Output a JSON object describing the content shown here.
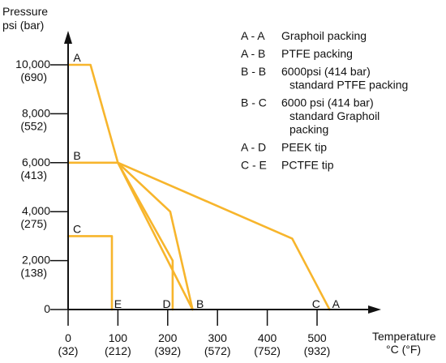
{
  "chart_data": {
    "type": "line",
    "title": "",
    "ylabel_lines": [
      "Pressure",
      "psi (bar)"
    ],
    "xlabel_lines": [
      "Temperature",
      "°C (°F)"
    ],
    "xlim": [
      0,
      540
    ],
    "ylim": [
      0,
      10500
    ],
    "y_ticks": [
      {
        "value": 10000,
        "label": "10,000",
        "sub": "(690)"
      },
      {
        "value": 8000,
        "label": "8,000",
        "sub": "(552)"
      },
      {
        "value": 6000,
        "label": "6,000",
        "sub": "(413)"
      },
      {
        "value": 4000,
        "label": "4,000",
        "sub": "(275)"
      },
      {
        "value": 2000,
        "label": "2,000",
        "sub": "(138)"
      },
      {
        "value": 0,
        "label": "0",
        "sub": ""
      }
    ],
    "x_ticks": [
      {
        "value": 0,
        "label": "0",
        "sub": "(32)"
      },
      {
        "value": 100,
        "label": "100",
        "sub": "(212)"
      },
      {
        "value": 200,
        "label": "200",
        "sub": "(392)"
      },
      {
        "value": 300,
        "label": "300",
        "sub": "(572)"
      },
      {
        "value": 400,
        "label": "400",
        "sub": "(752)"
      },
      {
        "value": 500,
        "label": "500",
        "sub": "(932)"
      }
    ],
    "line_color": "#f7b52c",
    "series": [
      {
        "points": [
          [
            0,
            10000
          ],
          [
            45,
            10000
          ],
          [
            100,
            6000
          ],
          [
            250,
            0
          ]
        ]
      },
      {
        "points": [
          [
            0,
            6000
          ],
          [
            100,
            6000
          ],
          [
            205,
            4000
          ],
          [
            250,
            0
          ]
        ]
      },
      {
        "points": [
          [
            100,
            6000
          ],
          [
            450,
            2900
          ],
          [
            525,
            0
          ]
        ]
      },
      {
        "points": [
          [
            100,
            6000
          ],
          [
            210,
            2000
          ],
          [
            210,
            0
          ]
        ]
      },
      {
        "points": [
          [
            0,
            3000
          ],
          [
            88,
            3000
          ],
          [
            88,
            0
          ]
        ]
      }
    ],
    "point_labels": [
      {
        "text": "A",
        "x": 18,
        "y": 10000
      },
      {
        "text": "B",
        "x": 18,
        "y": 6000
      },
      {
        "text": "C",
        "x": 18,
        "y": 3000
      },
      {
        "text": "E",
        "x": 100,
        "y": 0
      },
      {
        "text": "D",
        "x": 198,
        "y": 0
      },
      {
        "text": "B",
        "x": 265,
        "y": 0
      },
      {
        "text": "C",
        "x": 498,
        "y": 0
      },
      {
        "text": "A",
        "x": 538,
        "y": 0
      }
    ],
    "legend": {
      "placement": "top-right",
      "entries": [
        {
          "code": "A - A",
          "lines": [
            "Graphoil packing"
          ]
        },
        {
          "code": "A - B",
          "lines": [
            "PTFE packing"
          ]
        },
        {
          "code": "B - B",
          "lines": [
            "6000psi (414 bar)",
            "standard PTFE packing"
          ]
        },
        {
          "code": "B - C",
          "lines": [
            "6000 psi (414 bar)",
            "standard Graphoil",
            "packing"
          ]
        },
        {
          "code": "A - D",
          "lines": [
            "PEEK tip"
          ]
        },
        {
          "code": "C - E",
          "lines": [
            "PCTFE tip"
          ]
        }
      ]
    }
  }
}
